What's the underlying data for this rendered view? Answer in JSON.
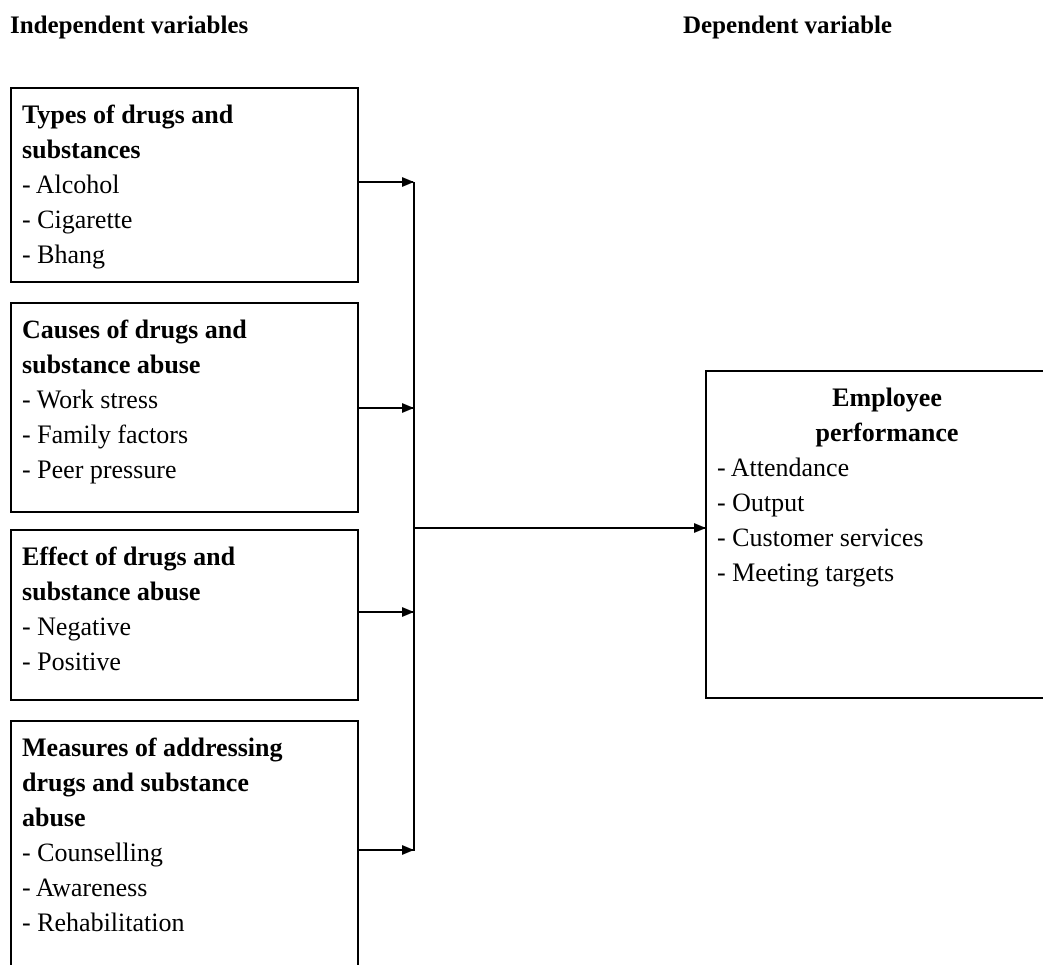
{
  "header": {
    "independent": "Independent variables",
    "dependent": "Dependent variable"
  },
  "independent_variables": [
    {
      "title": "Types of drugs and substances",
      "items": [
        "- Alcohol",
        "- Cigarette",
        "- Bhang"
      ]
    },
    {
      "title": "Causes of drugs and substance abuse",
      "items": [
        "- Work stress",
        "- Family factors",
        "- Peer pressure"
      ]
    },
    {
      "title": "Effect of drugs and substance abuse",
      "items": [
        "- Negative",
        "- Positive"
      ]
    },
    {
      "title": "Measures of addressing drugs and substance abuse",
      "items": [
        "- Counselling",
        "- Awareness",
        "- Rehabilitation"
      ]
    }
  ],
  "dependent_variable": {
    "title": "Employee performance",
    "items": [
      "- Attendance",
      "- Output",
      "- Customer services",
      "- Meeting targets"
    ]
  }
}
